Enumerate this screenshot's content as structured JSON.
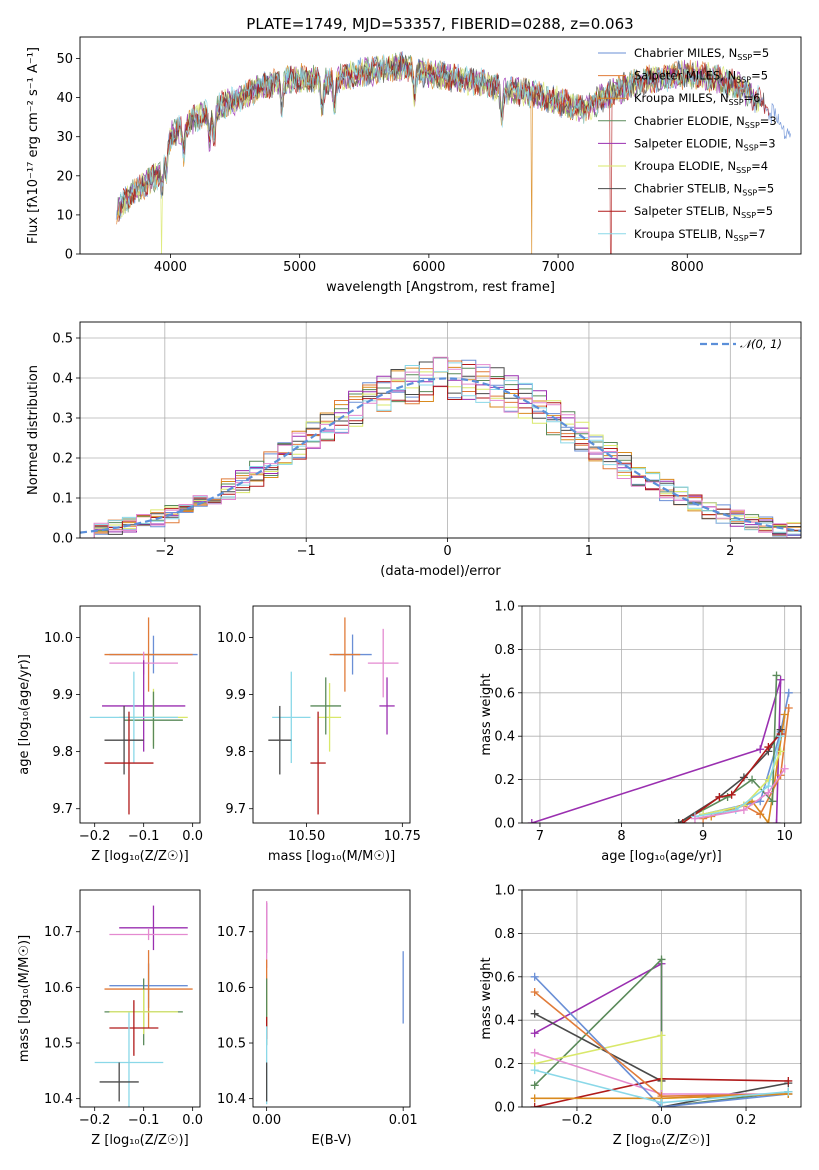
{
  "figure": {
    "title": "PLATE=1749, MJD=53357, FIBERID=0288, z=0.063"
  },
  "chart_data": [
    {
      "id": "spectrum",
      "type": "line",
      "xlabel": "wavelength [Angstrom, rest frame]",
      "ylabel": "Flux [fλ10⁻¹⁷ erg cm⁻² s⁻¹ A⁻¹]",
      "xlim": [
        3300,
        8880
      ],
      "ylim": [
        0,
        55.5
      ],
      "xticks": [
        4000,
        5000,
        6000,
        7000,
        8000
      ],
      "yticks": [
        0,
        10,
        20,
        30,
        40,
        50
      ],
      "grid": false,
      "legend_position": "top-right",
      "continuum": {
        "x": [
          3600,
          3700,
          3800,
          3900,
          4000,
          4100,
          4200,
          4300,
          4400,
          4600,
          4800,
          5000,
          5200,
          5400,
          5600,
          5800,
          6000,
          6200,
          6400,
          6600,
          6800,
          7000,
          7200,
          7400,
          7600,
          7800,
          8000,
          8200,
          8400,
          8600,
          8800
        ],
        "y": [
          12,
          15,
          18,
          20,
          30,
          33,
          35,
          36,
          38,
          41,
          44,
          45,
          44,
          46,
          47,
          48,
          46,
          45,
          44,
          42,
          41,
          39,
          37,
          41,
          44,
          45,
          46,
          45,
          43,
          38,
          30
        ]
      },
      "series": [
        {
          "name": "Chabrier MILES, N_SSP=5",
          "color": "#6a8fd6"
        },
        {
          "name": "Salpeter MILES, N_SSP=5",
          "color": "#e07b39"
        },
        {
          "name": "Kroupa MILES, N_SSP=6",
          "color": "#d98a1e"
        },
        {
          "name": "Chabrier ELODIE, N_SSP=3",
          "color": "#5a8a5a"
        },
        {
          "name": "Salpeter ELODIE, N_SSP=3",
          "color": "#9a2fb0"
        },
        {
          "name": "Kroupa ELODIE, N_SSP=4",
          "color": "#d9e86a"
        },
        {
          "name": "Chabrier STELIB, N_SSP=5",
          "color": "#4a4a4a"
        },
        {
          "name": "Salpeter STELIB, N_SSP=5",
          "color": "#b01a1a"
        },
        {
          "name": "Kroupa STELIB, N_SSP=7",
          "color": "#8ad8e8"
        }
      ],
      "legend_labels": [
        {
          "base": "Chabrier MILES, N",
          "sub": "SSP",
          "tail": "=5"
        },
        {
          "base": "Salpeter MILES, N",
          "sub": "SSP",
          "tail": "=5"
        },
        {
          "base": "Kroupa MILES, N",
          "sub": "SSP",
          "tail": "=6"
        },
        {
          "base": "Chabrier ELODIE, N",
          "sub": "SSP",
          "tail": "=3"
        },
        {
          "base": "Salpeter ELODIE, N",
          "sub": "SSP",
          "tail": "=3"
        },
        {
          "base": "Kroupa ELODIE, N",
          "sub": "SSP",
          "tail": "=4"
        },
        {
          "base": "Chabrier STELIB, N",
          "sub": "SSP",
          "tail": "=5"
        },
        {
          "base": "Salpeter STELIB, N",
          "sub": "SSP",
          "tail": "=5"
        },
        {
          "base": "Kroupa STELIB, N",
          "sub": "SSP",
          "tail": "=7"
        }
      ]
    },
    {
      "id": "residuals",
      "type": "area",
      "xlabel": "(data-model)/error",
      "ylabel": "Normed distribution",
      "xlim": [
        -2.6,
        2.5
      ],
      "ylim": [
        0,
        0.54
      ],
      "xticks": [
        -2,
        -1,
        0,
        1,
        2
      ],
      "xticklabels": [
        "−2",
        "−1",
        "0",
        "1",
        "2"
      ],
      "yticks": [
        0.0,
        0.1,
        0.2,
        0.3,
        0.4,
        0.5
      ],
      "yticklabels": [
        "0.0",
        "0.1",
        "0.2",
        "0.3",
        "0.4",
        "0.5"
      ],
      "grid": true,
      "gaussian_label": "𝒩(0, 1)",
      "gaussian_color": "#5b8fd9",
      "bin_width": 0.1,
      "legend_position": "top-right"
    },
    {
      "id": "age_vs_Z",
      "type": "scatter",
      "xlabel": "Z [log₁₀(Z/Z☉)]",
      "ylabel": "age  [log₁₀(age/yr)]",
      "xlim": [
        -0.23,
        0.015
      ],
      "ylim": [
        9.675,
        10.055
      ],
      "xticks": [
        -0.2,
        -0.1,
        0.0
      ],
      "xticklabels": [
        "−0.2",
        "−0.1",
        "0.0"
      ],
      "yticks": [
        9.7,
        9.8,
        9.9,
        10.0
      ],
      "yticklabels": [
        "9.7",
        "9.8",
        "9.9",
        "10.0"
      ],
      "points": [
        {
          "x": -0.08,
          "y": 9.97,
          "xerr": 0.09,
          "yerr": 0.033,
          "color": "#6a8fd6"
        },
        {
          "x": -0.09,
          "y": 9.97,
          "xerr": 0.09,
          "yerr": 0.065,
          "color": "#e07b39"
        },
        {
          "x": -0.1,
          "y": 9.955,
          "xerr": 0.07,
          "yerr": 0.02,
          "color": "#e48ad0"
        },
        {
          "x": -0.1,
          "y": 9.88,
          "xerr": 0.085,
          "yerr": 0.08,
          "color": "#9a2fb0"
        },
        {
          "x": -0.08,
          "y": 9.86,
          "xerr": 0.07,
          "yerr": 0.05,
          "color": "#d9e86a"
        },
        {
          "x": -0.08,
          "y": 9.855,
          "xerr": 0.06,
          "yerr": 0.05,
          "color": "#5a8a5a"
        },
        {
          "x": -0.12,
          "y": 9.86,
          "xerr": 0.09,
          "yerr": 0.08,
          "color": "#8ad8e8"
        },
        {
          "x": -0.14,
          "y": 9.82,
          "xerr": 0.04,
          "yerr": 0.06,
          "color": "#4a4a4a"
        },
        {
          "x": -0.13,
          "y": 9.78,
          "xerr": 0.05,
          "yerr": 0.09,
          "color": "#b01a1a"
        }
      ]
    },
    {
      "id": "age_vs_mass",
      "type": "scatter",
      "xlabel": "mass [log₁₀(M/M☉)]",
      "ylabel": "",
      "xlim": [
        10.36,
        10.77
      ],
      "ylim": [
        9.675,
        10.055
      ],
      "xticks": [
        10.5,
        10.75
      ],
      "xticklabels": [
        "10.50",
        "10.75"
      ],
      "yticks": [
        9.7,
        9.8,
        9.9,
        10.0
      ],
      "yticklabels": [
        "9.7",
        "9.8",
        "9.9",
        "10.0"
      ],
      "points": [
        {
          "x": 10.62,
          "y": 9.97,
          "xerr": 0.05,
          "yerr": 0.035,
          "color": "#6a8fd6"
        },
        {
          "x": 10.6,
          "y": 9.97,
          "xerr": 0.04,
          "yerr": 0.065,
          "color": "#e07b39"
        },
        {
          "x": 10.7,
          "y": 9.955,
          "xerr": 0.04,
          "yerr": 0.06,
          "color": "#e48ad0"
        },
        {
          "x": 10.71,
          "y": 9.88,
          "xerr": 0.02,
          "yerr": 0.05,
          "color": "#9a2fb0"
        },
        {
          "x": 10.56,
          "y": 9.86,
          "xerr": 0.03,
          "yerr": 0.06,
          "color": "#d9e86a"
        },
        {
          "x": 10.55,
          "y": 9.88,
          "xerr": 0.04,
          "yerr": 0.05,
          "color": "#5a8a5a"
        },
        {
          "x": 10.46,
          "y": 9.86,
          "xerr": 0.05,
          "yerr": 0.08,
          "color": "#8ad8e8"
        },
        {
          "x": 10.43,
          "y": 9.82,
          "xerr": 0.03,
          "yerr": 0.06,
          "color": "#4a4a4a"
        },
        {
          "x": 10.53,
          "y": 9.78,
          "xerr": 0.02,
          "yerr": 0.09,
          "color": "#b01a1a"
        }
      ]
    },
    {
      "id": "massweight_vs_age",
      "type": "line",
      "xlabel": "age  [log₁₀(age/yr)]",
      "ylabel": "mass weight",
      "xlim": [
        6.78,
        10.2
      ],
      "ylim": [
        0,
        1.0
      ],
      "xticks": [
        7,
        8,
        9,
        10
      ],
      "xticklabels": [
        "7",
        "8",
        "9",
        "10"
      ],
      "yticks": [
        0.0,
        0.2,
        0.4,
        0.6,
        0.8,
        1.0
      ],
      "yticklabels": [
        "0.0",
        "0.2",
        "0.4",
        "0.6",
        "0.8",
        "1.0"
      ],
      "grid": true,
      "series": [
        {
          "color": "#9a2fb0",
          "x": [
            6.9,
            9.7,
            9.95,
            9.9
          ],
          "y": [
            0.0,
            0.34,
            0.66,
            0.0
          ]
        },
        {
          "color": "#6a8fd6",
          "x": [
            9.0,
            9.7,
            9.95,
            10.05
          ],
          "y": [
            0.04,
            0.1,
            0.42,
            0.6
          ]
        },
        {
          "color": "#e07b39",
          "x": [
            9.0,
            9.5,
            9.7,
            9.95,
            10.05
          ],
          "y": [
            0.02,
            0.08,
            0.04,
            0.22,
            0.53
          ]
        },
        {
          "color": "#d98a1e",
          "x": [
            9.1,
            9.6,
            9.8,
            10.0
          ],
          "y": [
            0.03,
            0.1,
            0.0,
            0.5
          ]
        },
        {
          "color": "#5a8a5a",
          "x": [
            8.7,
            9.3,
            9.6,
            9.85,
            9.9
          ],
          "y": [
            0.0,
            0.12,
            0.2,
            0.1,
            0.68
          ]
        },
        {
          "color": "#4a4a4a",
          "x": [
            8.7,
            9.2,
            9.5,
            9.8,
            9.95
          ],
          "y": [
            0.0,
            0.12,
            0.21,
            0.33,
            0.43
          ]
        },
        {
          "color": "#b01a1a",
          "x": [
            8.75,
            9.2,
            9.35,
            9.8,
            9.95
          ],
          "y": [
            0.0,
            0.12,
            0.13,
            0.35,
            0.41
          ]
        },
        {
          "color": "#d9e86a",
          "x": [
            9.0,
            9.5,
            9.8,
            9.95
          ],
          "y": [
            0.04,
            0.08,
            0.2,
            0.33
          ]
        },
        {
          "color": "#8ad8e8",
          "x": [
            8.9,
            9.4,
            9.8,
            9.95
          ],
          "y": [
            0.03,
            0.06,
            0.17,
            0.4
          ]
        },
        {
          "color": "#e48ad0",
          "x": [
            8.9,
            9.5,
            9.8,
            10.0
          ],
          "y": [
            0.02,
            0.06,
            0.14,
            0.25
          ]
        }
      ]
    },
    {
      "id": "mass_vs_Z",
      "type": "scatter",
      "xlabel": "Z [log₁₀(Z/Z☉)]",
      "ylabel": "mass [log₁₀(M/M☉)]",
      "xlim": [
        -0.23,
        0.015
      ],
      "ylim": [
        10.385,
        10.775
      ],
      "xticks": [
        -0.2,
        -0.1,
        0.0
      ],
      "xticklabels": [
        "−0.2",
        "−0.1",
        "0.0"
      ],
      "yticks": [
        10.4,
        10.5,
        10.6,
        10.7
      ],
      "yticklabels": [
        "10.4",
        "10.5",
        "10.6",
        "10.7"
      ],
      "points": [
        {
          "x": -0.08,
          "y": 10.707,
          "xerr": 0.07,
          "yerr": 0.04,
          "color": "#9a2fb0"
        },
        {
          "x": -0.09,
          "y": 10.695,
          "xerr": 0.08,
          "yerr": 0.01,
          "color": "#e48ad0"
        },
        {
          "x": -0.09,
          "y": 10.603,
          "xerr": 0.08,
          "yerr": 0.04,
          "color": "#6a8fd6"
        },
        {
          "x": -0.09,
          "y": 10.597,
          "xerr": 0.09,
          "yerr": 0.07,
          "color": "#e07b39"
        },
        {
          "x": -0.1,
          "y": 10.556,
          "xerr": 0.08,
          "yerr": 0.06,
          "color": "#5a8a5a"
        },
        {
          "x": -0.1,
          "y": 10.556,
          "xerr": 0.07,
          "yerr": 0.04,
          "color": "#d9e86a"
        },
        {
          "x": -0.12,
          "y": 10.527,
          "xerr": 0.05,
          "yerr": 0.05,
          "color": "#b01a1a"
        },
        {
          "x": -0.13,
          "y": 10.465,
          "xerr": 0.07,
          "yerr": 0.09,
          "color": "#8ad8e8"
        },
        {
          "x": -0.15,
          "y": 10.43,
          "xerr": 0.04,
          "yerr": 0.035,
          "color": "#4a4a4a"
        }
      ]
    },
    {
      "id": "mass_vs_EBV",
      "type": "scatter",
      "xlabel": "E(B-V)",
      "ylabel": "",
      "xlim": [
        -0.001,
        0.0105
      ],
      "ylim": [
        10.385,
        10.775
      ],
      "xticks": [
        0.0,
        0.01
      ],
      "xticklabels": [
        "0.00",
        "0.01"
      ],
      "yticks": [
        10.4,
        10.5,
        10.6,
        10.7
      ],
      "yticklabels": [
        "10.4",
        "10.5",
        "10.6",
        "10.7"
      ],
      "points": [
        {
          "x": 0.0,
          "y": 10.707,
          "xerr": 0.0,
          "yerr": 0.045,
          "color": "#9a2fb0"
        },
        {
          "x": 0.0,
          "y": 10.695,
          "xerr": 0.0,
          "yerr": 0.06,
          "color": "#e48ad0"
        },
        {
          "x": 0.0,
          "y": 10.6,
          "xerr": 0.0,
          "yerr": 0.05,
          "color": "#e07b39"
        },
        {
          "x": 0.0,
          "y": 10.556,
          "xerr": 0.0,
          "yerr": 0.04,
          "color": "#d9e86a"
        },
        {
          "x": 0.0,
          "y": 10.556,
          "xerr": 0.0,
          "yerr": 0.06,
          "color": "#5a8a5a"
        },
        {
          "x": 0.0,
          "y": 10.527,
          "xerr": 0.0,
          "yerr": 0.02,
          "color": "#b01a1a"
        },
        {
          "x": 0.0,
          "y": 10.46,
          "xerr": 0.0,
          "yerr": 0.07,
          "color": "#8ad8e8"
        },
        {
          "x": 0.0,
          "y": 10.43,
          "xerr": 0.0,
          "yerr": 0.035,
          "color": "#4a4a4a"
        },
        {
          "x": 0.01,
          "y": 10.6,
          "xerr": 0.0,
          "yerr": 0.065,
          "color": "#6a8fd6"
        }
      ]
    },
    {
      "id": "massweight_vs_Z",
      "type": "line",
      "xlabel": "Z [log₁₀(Z/Z☉)]",
      "ylabel": "mass weight",
      "xlim": [
        -0.33,
        0.33
      ],
      "ylim": [
        0,
        1.0
      ],
      "xticks": [
        -0.2,
        0.0,
        0.2
      ],
      "xticklabels": [
        "−0.2",
        "0.0",
        "0.2"
      ],
      "yticks": [
        0.0,
        0.2,
        0.4,
        0.6,
        0.8,
        1.0
      ],
      "yticklabels": [
        "0.0",
        "0.2",
        "0.4",
        "0.6",
        "0.8",
        "1.0"
      ],
      "grid": true,
      "series": [
        {
          "color": "#9a2fb0",
          "x": [
            -0.3,
            0.0,
            0.0
          ],
          "y": [
            0.34,
            0.66,
            0.0
          ]
        },
        {
          "color": "#5a8a5a",
          "x": [
            -0.3,
            0.0,
            0.0,
            0.3
          ],
          "y": [
            0.1,
            0.68,
            0.0,
            0.07
          ]
        },
        {
          "color": "#4a4a4a",
          "x": [
            -0.3,
            0.0,
            0.0,
            0.3
          ],
          "y": [
            0.43,
            0.12,
            0.0,
            0.11
          ]
        },
        {
          "color": "#b01a1a",
          "x": [
            -0.3,
            0.0,
            0.3
          ],
          "y": [
            0.0,
            0.13,
            0.12
          ]
        },
        {
          "color": "#d9e86a",
          "x": [
            -0.3,
            0.0,
            0.0,
            0.3
          ],
          "y": [
            0.2,
            0.33,
            0.04,
            0.06
          ]
        },
        {
          "color": "#e48ad0",
          "x": [
            -0.3,
            0.0,
            0.3
          ],
          "y": [
            0.25,
            0.06,
            0.06
          ]
        },
        {
          "color": "#6a8fd6",
          "x": [
            -0.3,
            0.0,
            0.3
          ],
          "y": [
            0.6,
            0.0,
            0.06
          ]
        },
        {
          "color": "#e07b39",
          "x": [
            -0.3,
            0.0,
            0.3
          ],
          "y": [
            0.53,
            0.05,
            0.06
          ]
        },
        {
          "color": "#d98a1e",
          "x": [
            -0.3,
            0.0,
            0.3
          ],
          "y": [
            0.04,
            0.04,
            0.06
          ]
        },
        {
          "color": "#8ad8e8",
          "x": [
            -0.3,
            0.0,
            0.3
          ],
          "y": [
            0.17,
            0.02,
            0.07
          ]
        }
      ]
    }
  ]
}
